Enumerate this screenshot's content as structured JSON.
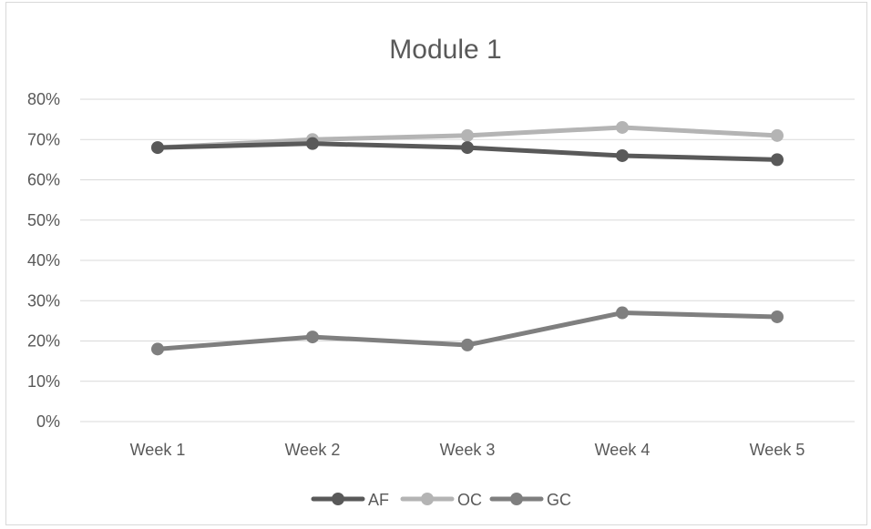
{
  "chart_data": {
    "type": "line",
    "title": "Module 1",
    "xlabel": "",
    "ylabel": "",
    "categories": [
      "Week 1",
      "Week 2",
      "Week 3",
      "Week 4",
      "Week 5"
    ],
    "y_ticks": [
      "0%",
      "10%",
      "20%",
      "30%",
      "40%",
      "50%",
      "60%",
      "70%",
      "80%"
    ],
    "ylim": [
      0,
      0.8
    ],
    "grid": true,
    "legend_position": "bottom",
    "series": [
      {
        "name": "AF",
        "color": "#595959",
        "values": [
          0.68,
          0.69,
          0.68,
          0.66,
          0.65
        ]
      },
      {
        "name": "OC",
        "color": "#b4b4b4",
        "values": [
          0.68,
          0.7,
          0.71,
          0.73,
          0.71
        ]
      },
      {
        "name": "GC",
        "color": "#7f7f7f",
        "values": [
          0.18,
          0.21,
          0.19,
          0.27,
          0.26
        ]
      }
    ]
  }
}
